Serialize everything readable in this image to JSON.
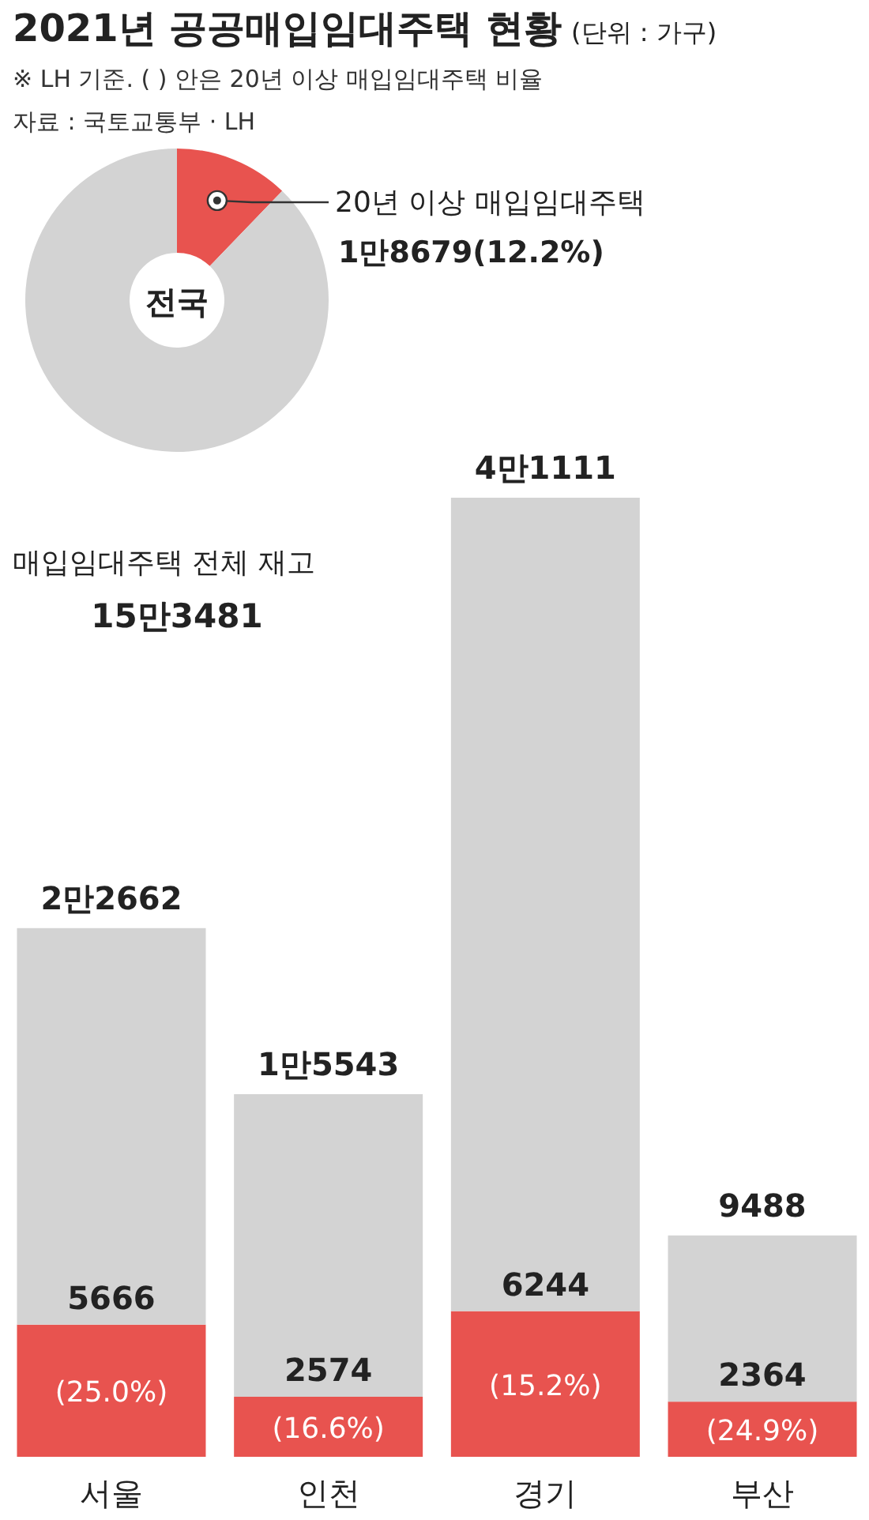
{
  "chart_data": [
    {
      "type": "donut",
      "title": "2021년 공공매입임대주택 현황",
      "subtitle": "(단위 : 가구)",
      "categories": [
        "20년 이상 매입임대주택",
        null
      ],
      "values": [
        12.2,
        87.8
      ],
      "colors": [
        "#e8534f",
        "#d3d3d3"
      ],
      "value_labels": [
        "1만8679(12.2%)",
        null
      ],
      "annotations": [
        "※ LH 기준. (   ) 안은 20년 이상 매입임대주택 비율",
        "자료 : 국토교통부 · LH",
        "전국",
        "매입임대주택 전체 재고",
        "15만3481"
      ]
    },
    {
      "type": "bar",
      "stacked": true,
      "categories": [
        "서울",
        "인천",
        "경기",
        "부산"
      ],
      "series": [
        {
          "color": "#e8534f",
          "values": [
            5666,
            2574,
            6244,
            2364
          ],
          "value_labels": [
            "5666",
            "2574",
            "6244",
            "2364"
          ]
        },
        {
          "color": "#d3d3d3",
          "values": [
            16996,
            12969,
            34867,
            7124
          ]
        }
      ],
      "totals": [
        "2만2662",
        "1만5543",
        "4만1111",
        "9488"
      ],
      "annotations": [
        "(25.0%)",
        "(16.6%)",
        "(15.2%)",
        "(24.9%)"
      ]
    }
  ]
}
